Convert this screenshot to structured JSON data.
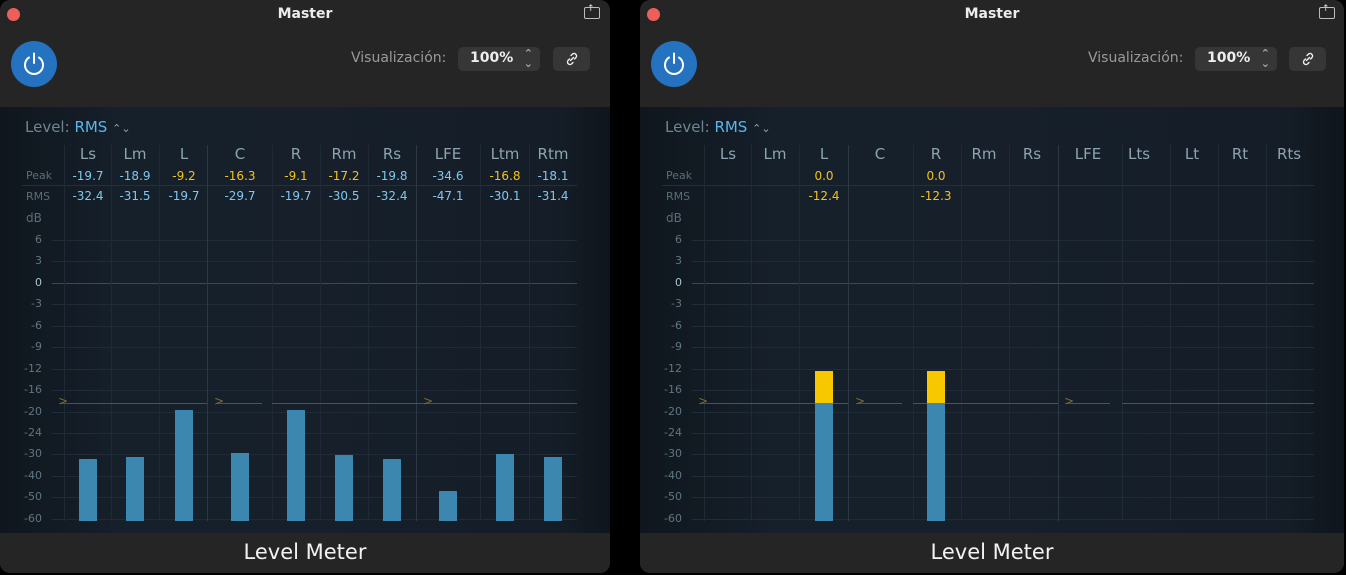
{
  "windows": [
    {
      "title": "Master",
      "visualization_label": "Visualización:",
      "visualization_value": "100%",
      "level_label": "Level:",
      "level_mode": "RMS",
      "row_labels": {
        "peak": "Peak",
        "rms": "RMS",
        "db": "dB"
      },
      "footer": "Level Meter",
      "channels": [
        {
          "name": "Ls",
          "peak": "-19.7",
          "rms": "-32.4",
          "peak_color": "blue",
          "rms_color": "blue"
        },
        {
          "name": "Lm",
          "peak": "-18.9",
          "rms": "-31.5",
          "peak_color": "blue",
          "rms_color": "blue"
        },
        {
          "name": "L",
          "peak": "-9.2",
          "rms": "-19.7",
          "peak_color": "yellow",
          "rms_color": "blue"
        },
        {
          "name": "C",
          "peak": "-16.3",
          "rms": "-29.7",
          "peak_color": "yellow",
          "rms_color": "blue"
        },
        {
          "name": "R",
          "peak": "-9.1",
          "rms": "-19.7",
          "peak_color": "yellow",
          "rms_color": "blue"
        },
        {
          "name": "Rm",
          "peak": "-17.2",
          "rms": "-30.5",
          "peak_color": "yellow",
          "rms_color": "blue"
        },
        {
          "name": "Rs",
          "peak": "-19.8",
          "rms": "-32.4",
          "peak_color": "blue",
          "rms_color": "blue"
        },
        {
          "name": "LFE",
          "peak": "-34.6",
          "rms": "-47.1",
          "peak_color": "blue",
          "rms_color": "blue"
        },
        {
          "name": "Ltm",
          "peak": "-16.8",
          "rms": "-30.1",
          "peak_color": "yellow",
          "rms_color": "blue"
        },
        {
          "name": "Rtm",
          "peak": "-18.1",
          "rms": "-31.4",
          "peak_color": "blue",
          "rms_color": "blue"
        }
      ]
    },
    {
      "title": "Master",
      "visualization_label": "Visualización:",
      "visualization_value": "100%",
      "level_label": "Level:",
      "level_mode": "RMS",
      "row_labels": {
        "peak": "Peak",
        "rms": "RMS",
        "db": "dB"
      },
      "footer": "Level Meter",
      "channels": [
        {
          "name": "Ls",
          "peak": "",
          "rms": ""
        },
        {
          "name": "Lm",
          "peak": "",
          "rms": ""
        },
        {
          "name": "L",
          "peak": "0.0",
          "rms": "-12.4",
          "peak_color": "yellow",
          "rms_color": "yellow"
        },
        {
          "name": "C",
          "peak": "",
          "rms": ""
        },
        {
          "name": "R",
          "peak": "0.0",
          "rms": "-12.3",
          "peak_color": "yellow",
          "rms_color": "yellow"
        },
        {
          "name": "Rm",
          "peak": "",
          "rms": ""
        },
        {
          "name": "Rs",
          "peak": "",
          "rms": ""
        },
        {
          "name": "LFE",
          "peak": "",
          "rms": ""
        },
        {
          "name": "Lts",
          "peak": "",
          "rms": ""
        },
        {
          "name": "Lt",
          "peak": "",
          "rms": ""
        },
        {
          "name": "Rt",
          "peak": "",
          "rms": ""
        },
        {
          "name": "Rts",
          "peak": "",
          "rms": ""
        }
      ]
    }
  ],
  "scale": [
    "6",
    "3",
    "0",
    "-3",
    "-6",
    "-9",
    "-12",
    "-16",
    "-20",
    "-24",
    "-30",
    "-40",
    "-50",
    "-60"
  ],
  "colors": {
    "accent": "#2472c0",
    "meter_blue": "#3b87b0",
    "meter_yellow": "#f7c700",
    "text_blue": "#7fc7ef",
    "text_yellow": "#f2c318"
  }
}
